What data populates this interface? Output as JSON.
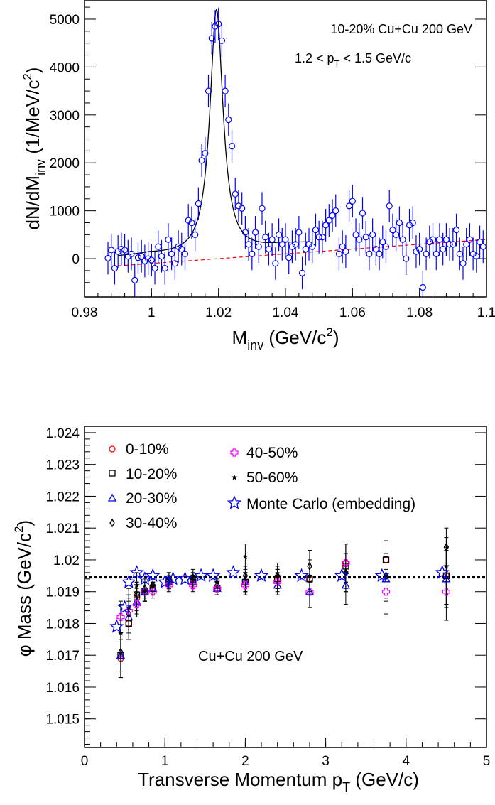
{
  "chart_data": [
    {
      "type": "scatter",
      "title": "",
      "annotations": [
        "10-20% Cu+Cu 200 GeV",
        "1.2 < p",
        "T",
        " < 1.5 GeV/c"
      ],
      "xlabel": {
        "main": "M",
        "sub": "inv",
        "rest": " (GeV/c",
        "sup": "2",
        "close": ")"
      },
      "ylabel": {
        "main": "dN/dM",
        "sub": "inv",
        "rest": " (1/MeV/c",
        "sup": "2",
        "close": ")"
      },
      "xlim": [
        0.98,
        1.1
      ],
      "ylim": [
        -800,
        5400
      ],
      "xticks": [
        {
          "v": 0.98,
          "label": "0.98"
        },
        {
          "v": 1.0,
          "label": "1"
        },
        {
          "v": 1.02,
          "label": "1.02"
        },
        {
          "v": 1.04,
          "label": "1.04"
        },
        {
          "v": 1.06,
          "label": "1.06"
        },
        {
          "v": 1.08,
          "label": "1.08"
        },
        {
          "v": 1.1,
          "label": "1.1"
        }
      ],
      "yticks": [
        {
          "v": 0,
          "label": "0"
        },
        {
          "v": 1000,
          "label": "1000"
        },
        {
          "v": 2000,
          "label": "2000"
        },
        {
          "v": 3000,
          "label": "3000"
        },
        {
          "v": 4000,
          "label": "4000"
        },
        {
          "v": 5000,
          "label": "5000"
        }
      ],
      "series": [
        {
          "marker": "open-circle",
          "color": "#0000ff",
          "x": [
            0.987,
            0.988,
            0.989,
            0.99,
            0.991,
            0.992,
            0.993,
            0.994,
            0.995,
            0.996,
            0.997,
            0.998,
            0.999,
            1.0,
            1.001,
            1.002,
            1.003,
            1.004,
            1.005,
            1.006,
            1.007,
            1.008,
            1.009,
            1.01,
            1.011,
            1.012,
            1.013,
            1.014,
            1.015,
            1.016,
            1.017,
            1.018,
            1.019,
            1.02,
            1.021,
            1.022,
            1.023,
            1.024,
            1.025,
            1.026,
            1.027,
            1.028,
            1.029,
            1.03,
            1.031,
            1.032,
            1.033,
            1.034,
            1.035,
            1.036,
            1.037,
            1.038,
            1.039,
            1.04,
            1.041,
            1.042,
            1.043,
            1.044,
            1.045,
            1.046,
            1.047,
            1.048,
            1.049,
            1.05,
            1.051,
            1.052,
            1.053,
            1.054,
            1.055,
            1.056,
            1.057,
            1.058,
            1.059,
            1.06,
            1.061,
            1.062,
            1.063,
            1.064,
            1.065,
            1.066,
            1.067,
            1.068,
            1.069,
            1.07,
            1.071,
            1.072,
            1.073,
            1.074,
            1.075,
            1.076,
            1.077,
            1.078,
            1.079,
            1.08,
            1.081,
            1.082,
            1.083,
            1.084,
            1.085,
            1.086,
            1.087,
            1.088,
            1.089,
            1.09,
            1.091,
            1.092,
            1.093,
            1.094,
            1.095,
            1.096,
            1.097,
            1.098,
            1.099
          ],
          "y": [
            10,
            180,
            -200,
            150,
            200,
            180,
            50,
            100,
            -450,
            20,
            50,
            -50,
            0,
            -30,
            -200,
            250,
            50,
            -200,
            400,
            100,
            -100,
            250,
            200,
            100,
            800,
            750,
            500,
            1150,
            2050,
            2200,
            3500,
            4600,
            4850,
            4900,
            4550,
            3500,
            2900,
            2350,
            1350,
            1100,
            1050,
            550,
            300,
            100,
            550,
            250,
            1050,
            450,
            200,
            400,
            -100,
            500,
            300,
            400,
            20,
            250,
            300,
            550,
            -300,
            200,
            300,
            250,
            600,
            450,
            450,
            700,
            800,
            900,
            1000,
            100,
            250,
            150,
            1100,
            1200,
            500,
            400,
            950,
            450,
            100,
            500,
            200,
            100,
            350,
            250,
            1100,
            600,
            500,
            750,
            400,
            0,
            700,
            750,
            150,
            200,
            -600,
            100,
            350,
            400,
            100,
            400,
            200,
            400,
            300,
            300,
            600,
            100,
            -100,
            300,
            400,
            100,
            50,
            350,
            250
          ],
          "yerr": 340
        }
      ],
      "fit_curve": {
        "style": "solid",
        "color": "#000000",
        "peak_x": 1.0194,
        "peak_y": 5200
      },
      "background_curve": {
        "style": "dashed",
        "color": "#ff0000",
        "from": [
          0.99,
          -150
        ],
        "to": [
          1.1,
          400
        ]
      }
    },
    {
      "type": "scatter",
      "title": "",
      "annotation": "Cu+Cu 200 GeV",
      "xlabel": {
        "main": "Transverse Momentum p",
        "sub": "T",
        "rest": " (GeV/c)"
      },
      "ylabel": {
        "main": "φ Mass (GeV/c",
        "sup": "2",
        "close": ")"
      },
      "xlim": [
        0,
        5
      ],
      "ylim": [
        1.0141,
        1.0242
      ],
      "xticks": [
        {
          "v": 0,
          "label": "0"
        },
        {
          "v": 1,
          "label": "1"
        },
        {
          "v": 2,
          "label": "2"
        },
        {
          "v": 3,
          "label": "3"
        },
        {
          "v": 4,
          "label": "4"
        },
        {
          "v": 5,
          "label": "5"
        }
      ],
      "yticks": [
        {
          "v": 1.015,
          "label": "1.015"
        },
        {
          "v": 1.016,
          "label": "1.016"
        },
        {
          "v": 1.017,
          "label": "1.017"
        },
        {
          "v": 1.018,
          "label": "1.018"
        },
        {
          "v": 1.019,
          "label": "1.019"
        },
        {
          "v": 1.02,
          "label": "1.02"
        },
        {
          "v": 1.021,
          "label": "1.021"
        },
        {
          "v": 1.022,
          "label": "1.022"
        },
        {
          "v": 1.023,
          "label": "1.023"
        },
        {
          "v": 1.024,
          "label": "1.024"
        }
      ],
      "reference_line": {
        "y": 1.01946,
        "style": "dotted",
        "color": "#000000"
      },
      "series": [
        {
          "name": "0-10%",
          "marker": "circle",
          "color": "#ff0000",
          "x": [
            0.45,
            0.55,
            0.65,
            0.75,
            0.85,
            1.05,
            1.35,
            1.65,
            2.0,
            2.4,
            2.8,
            3.25,
            3.75,
            4.5
          ],
          "y": [
            1.0169,
            1.018,
            1.0188,
            1.019,
            1.0191,
            1.0193,
            1.0193,
            1.0191,
            1.0193,
            1.0194,
            1.0194,
            1.0199,
            1.02,
            1.0195
          ],
          "err": [
            0.0006,
            0.0005,
            0.0004,
            0.0003,
            0.0002,
            0.0002,
            0.0002,
            0.0002,
            0.0003,
            0.0003,
            0.0005,
            0.0006,
            0.0006,
            0.0009
          ]
        },
        {
          "name": "10-20%",
          "marker": "square",
          "color": "#000000",
          "x": [
            0.45,
            0.55,
            0.65,
            0.75,
            0.85,
            1.05,
            1.35,
            1.65,
            2.0,
            2.4,
            2.8,
            3.25,
            3.75,
            4.5
          ],
          "y": [
            1.017,
            1.018,
            1.0189,
            1.019,
            1.0191,
            1.0193,
            1.0193,
            1.0191,
            1.0193,
            1.0194,
            1.0194,
            1.0198,
            1.02,
            1.0195
          ],
          "err": [
            0.0007,
            0.0005,
            0.0004,
            0.0003,
            0.0002,
            0.0002,
            0.0002,
            0.0002,
            0.0003,
            0.0003,
            0.0005,
            0.0007,
            0.0006,
            0.0009
          ]
        },
        {
          "name": "20-30%",
          "marker": "triangle",
          "color": "#0000ff",
          "x": [
            0.45,
            0.55,
            0.65,
            0.75,
            0.85,
            1.05,
            1.35,
            1.65,
            2.0,
            2.4,
            2.8,
            3.25,
            3.75,
            4.5
          ],
          "y": [
            1.017,
            1.0182,
            1.0187,
            1.019,
            1.0191,
            1.0194,
            1.0193,
            1.0191,
            1.0193,
            1.0192,
            1.019,
            1.0192,
            1.0194,
            1.0194
          ],
          "err": [
            0.0007,
            0.0005,
            0.0004,
            0.0003,
            0.0002,
            0.0002,
            0.0002,
            0.0002,
            0.0003,
            0.0003,
            0.0005,
            0.0006,
            0.0007,
            0.0009
          ]
        },
        {
          "name": "30-40%",
          "marker": "diamond",
          "color": "#000000",
          "x": [
            0.45,
            0.55,
            0.65,
            0.75,
            0.85,
            1.05,
            1.35,
            1.65,
            2.0,
            2.4,
            2.8,
            3.25,
            3.75,
            4.5
          ],
          "y": [
            1.0171,
            1.0183,
            1.0189,
            1.0191,
            1.0192,
            1.0194,
            1.0194,
            1.0192,
            1.0195,
            1.0195,
            1.0198,
            1.0196,
            1.0195,
            1.0204
          ],
          "err": [
            0.0006,
            0.0005,
            0.0004,
            0.0003,
            0.0002,
            0.0002,
            0.0002,
            0.0002,
            0.0003,
            0.0003,
            0.0005,
            0.0006,
            0.0007,
            0.0006
          ]
        },
        {
          "name": "40-50%",
          "marker": "plus",
          "color": "#ff00ff",
          "x": [
            0.45,
            0.55,
            0.65,
            0.75,
            0.85,
            1.05,
            1.35,
            1.65,
            2.0,
            2.4,
            2.8,
            3.25,
            3.75,
            4.5
          ],
          "y": [
            1.0182,
            1.0184,
            1.0186,
            1.019,
            1.019,
            1.0192,
            1.0192,
            1.0191,
            1.0192,
            1.0193,
            1.019,
            1.0199,
            1.019,
            1.019
          ],
          "err": [
            0.0005,
            0.0005,
            0.0004,
            0.0003,
            0.0002,
            0.0002,
            0.0002,
            0.0002,
            0.0003,
            0.0003,
            0.0005,
            0.0006,
            0.0007,
            0.0009
          ]
        },
        {
          "name": "50-60%",
          "marker": "star-small",
          "color": "#000000",
          "x": [
            0.45,
            0.55,
            0.65,
            0.75,
            0.85,
            1.05,
            1.35,
            1.65,
            2.0,
            2.4,
            2.8,
            3.25,
            3.75,
            4.5
          ],
          "y": [
            1.0177,
            1.0185,
            1.0192,
            1.019,
            1.0192,
            1.0193,
            1.0195,
            1.0193,
            1.0201,
            1.0195,
            1.0195,
            1.0196,
            1.0195,
            1.0198
          ],
          "err": [
            0.0009,
            0.0006,
            0.0004,
            0.0003,
            0.0002,
            0.0002,
            0.0002,
            0.0002,
            0.0004,
            0.0004,
            0.0005,
            0.0006,
            0.0007,
            0.0009
          ]
        },
        {
          "name": "Monte Carlo (embedding)",
          "marker": "open-star",
          "color": "#0000ff",
          "x": [
            0.4,
            0.5,
            0.55,
            0.65,
            0.75,
            0.85,
            1.0,
            1.1,
            1.25,
            1.45,
            1.6,
            1.85,
            2.2,
            2.7,
            3.2,
            3.7,
            4.45
          ],
          "y": [
            1.0179,
            1.0185,
            1.0193,
            1.0196,
            1.0194,
            1.0195,
            1.0193,
            1.0194,
            1.0194,
            1.0195,
            1.0195,
            1.0196,
            1.0195,
            1.0195,
            1.0195,
            1.0195,
            1.0196
          ],
          "err": []
        }
      ]
    }
  ]
}
